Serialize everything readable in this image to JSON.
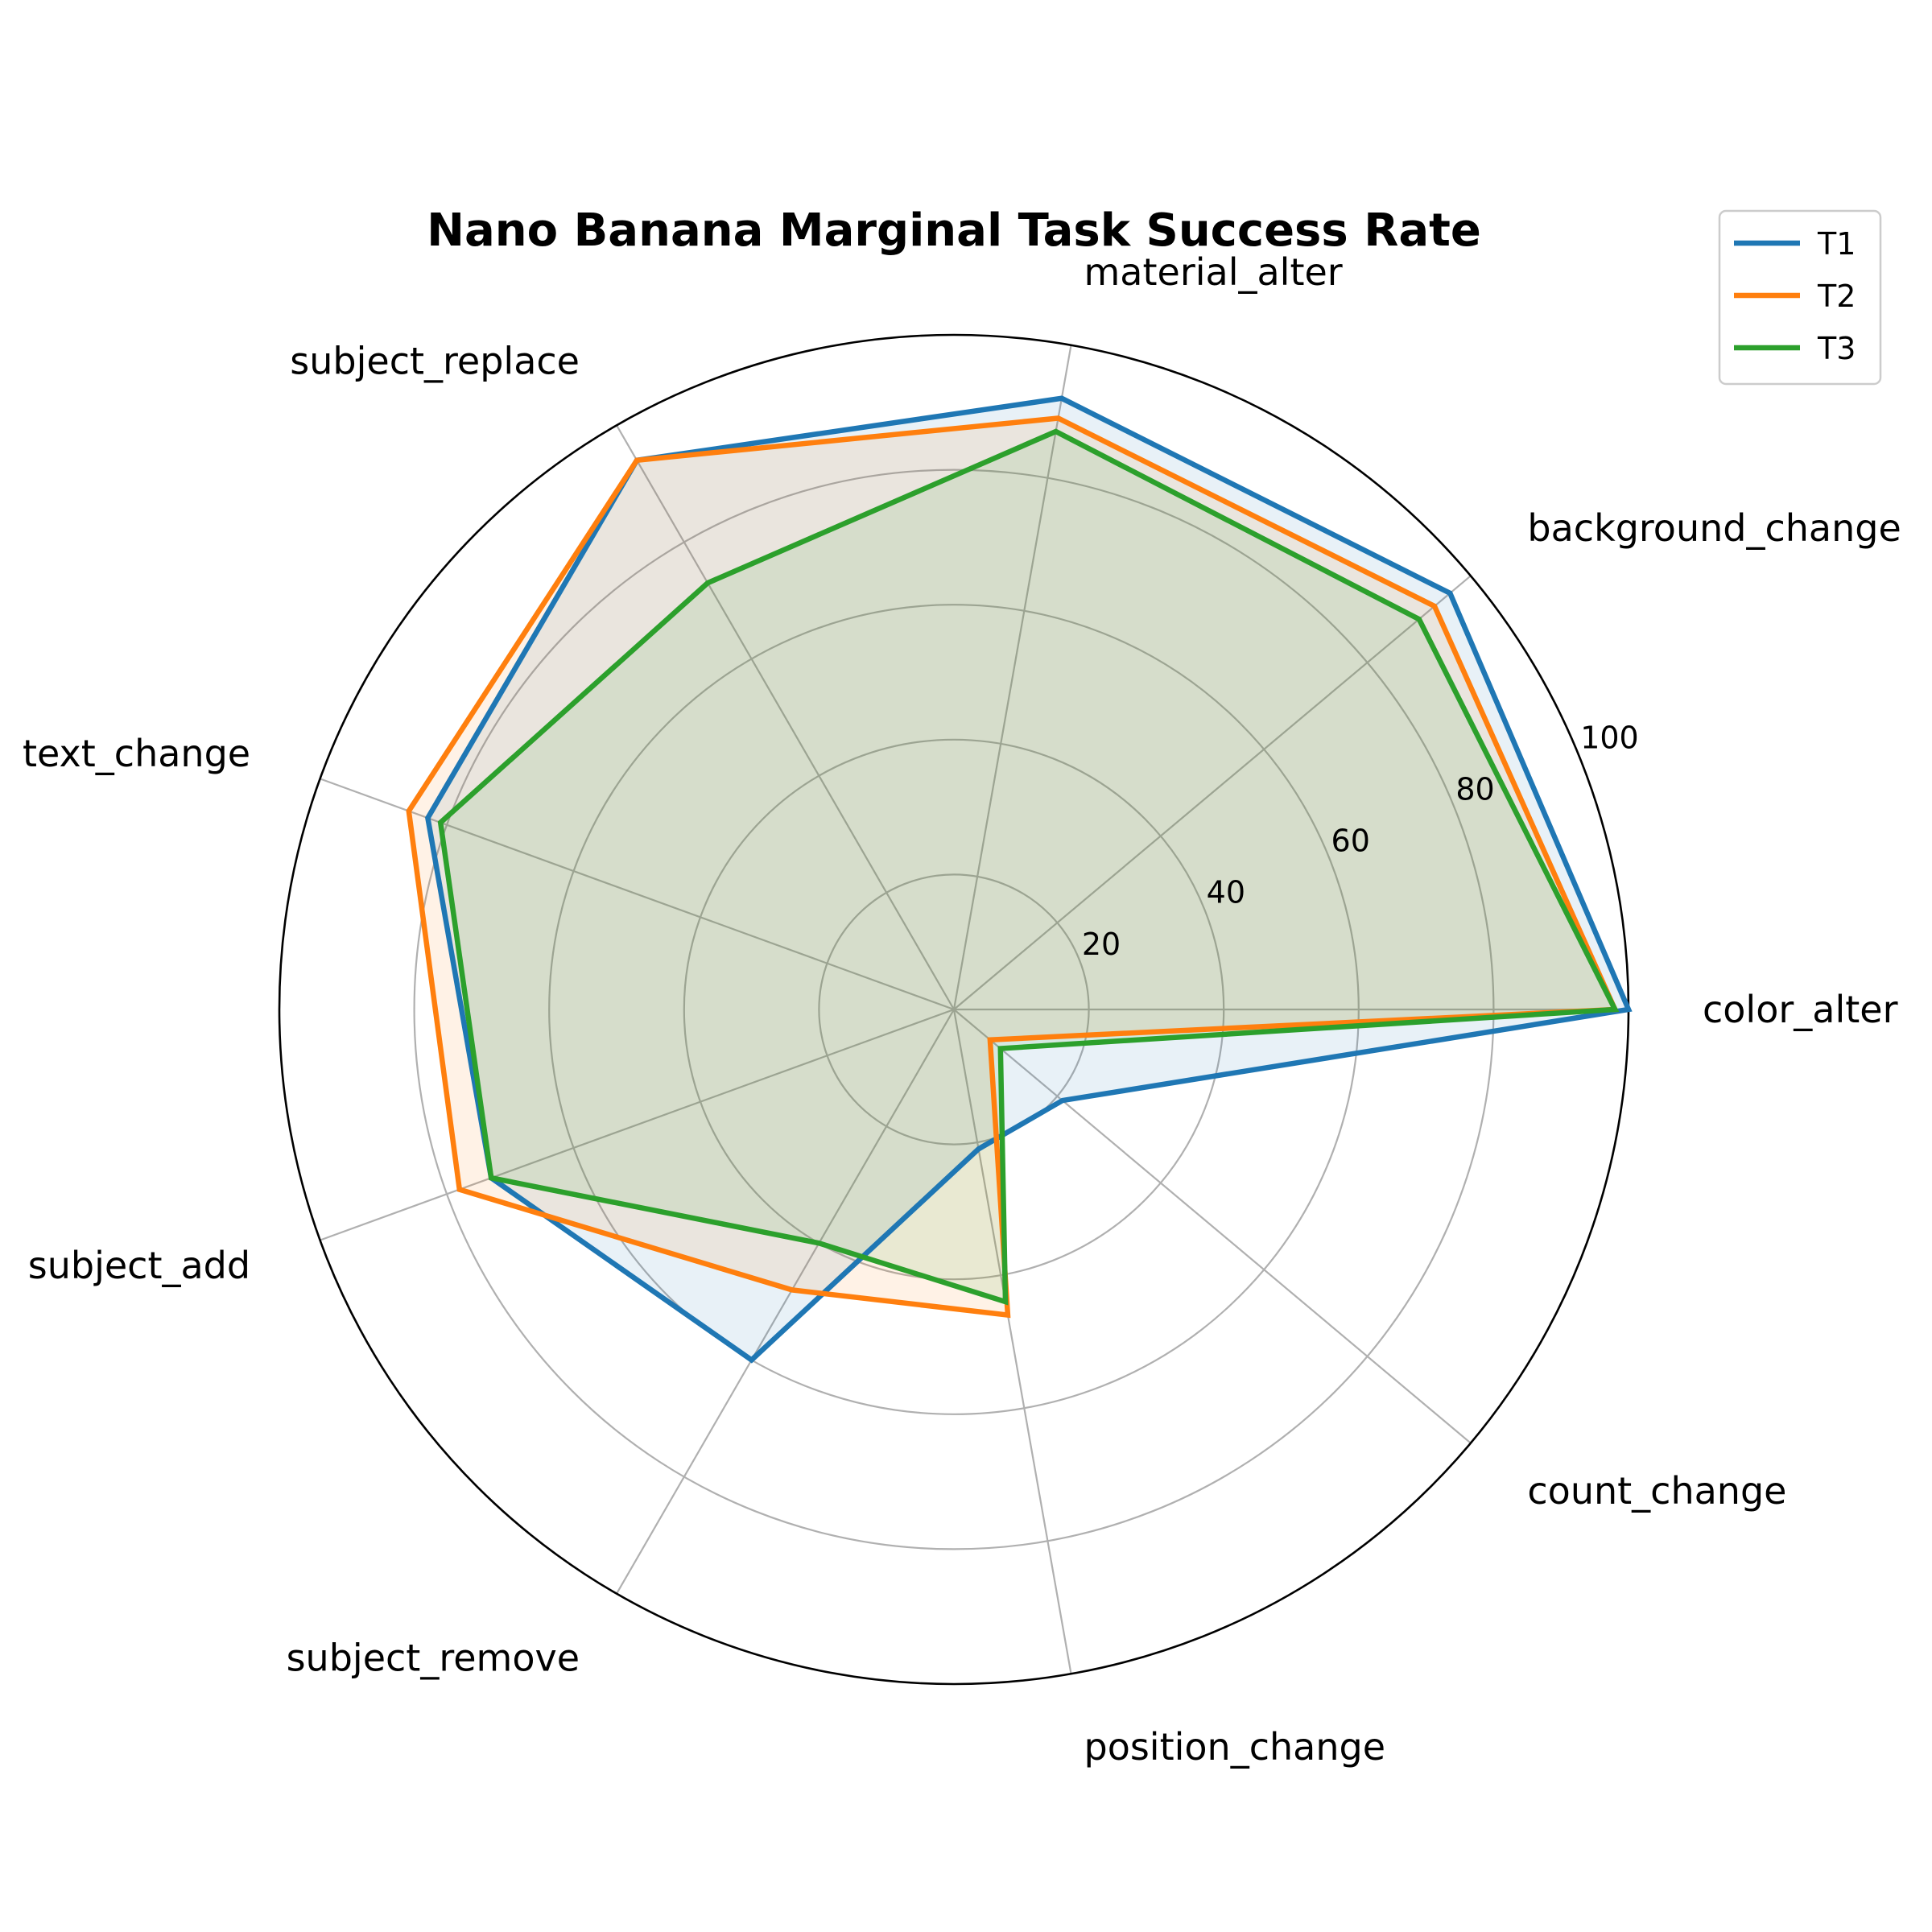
{
  "chart_data": {
    "type": "radar",
    "title": "Nano Banana Marginal Task Success Rate",
    "categories": [
      "color_alter",
      "background_change",
      "material_alter",
      "subject_replace",
      "text_change",
      "subject_add",
      "subject_remove",
      "position_change",
      "count_change"
    ],
    "radial_ticks": [
      20,
      40,
      60,
      80,
      100
    ],
    "rlim": [
      0,
      100
    ],
    "series": [
      {
        "name": "T1",
        "color": "#1f77b4",
        "fill_opacity": 0.1,
        "values": [
          100,
          96,
          92,
          94,
          83,
          73,
          60,
          21,
          21
        ]
      },
      {
        "name": "T2",
        "color": "#ff7f0e",
        "fill_opacity": 0.1,
        "values": [
          98,
          93,
          89,
          94,
          86,
          78,
          48,
          46,
          7
        ]
      },
      {
        "name": "T3",
        "color": "#2ca02c",
        "fill_opacity": 0.1,
        "values": [
          98,
          90,
          87,
          73,
          81,
          73,
          40,
          44,
          9
        ]
      }
    ],
    "grid": true,
    "legend": "top-right"
  }
}
